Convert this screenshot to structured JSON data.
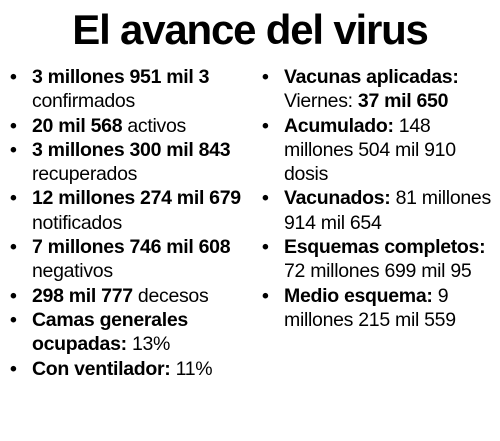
{
  "title": "El avance del virus",
  "left_items": [
    {
      "bold": "3 millones 951 mil 3",
      "text": " confirmados"
    },
    {
      "bold": "20 mil 568",
      "text": " activos"
    },
    {
      "bold": "3 millones 300 mil 843",
      "text": " recuperados"
    },
    {
      "bold": "12 millones 274 mil 679",
      "text": " notificados"
    },
    {
      "bold": "7 millones 746 mil 608",
      "text": " negativos"
    },
    {
      "bold": "298 mil 777",
      "text": " decesos"
    },
    {
      "bold": "Camas generales ocupadas:",
      "text": " 13%"
    },
    {
      "bold": "Con ventilador:",
      "text": " 11%"
    }
  ],
  "right_items": [
    {
      "bold": "Vacunas aplicadas:",
      "text": " Viernes: ",
      "bold2": "37 mil 650"
    },
    {
      "bold": "Acumulado:",
      "text": " 148 millones 504 mil 910 dosis"
    },
    {
      "bold": "Vacunados:",
      "text": " 81 millones 914 mil 654"
    },
    {
      "bold": "Esquemas completos:",
      "text": " 72 millones 699 mil 95"
    },
    {
      "bold": "Medio esquema:",
      "text": " 9 millones 215 mil 559"
    }
  ],
  "bullet_char": "•"
}
